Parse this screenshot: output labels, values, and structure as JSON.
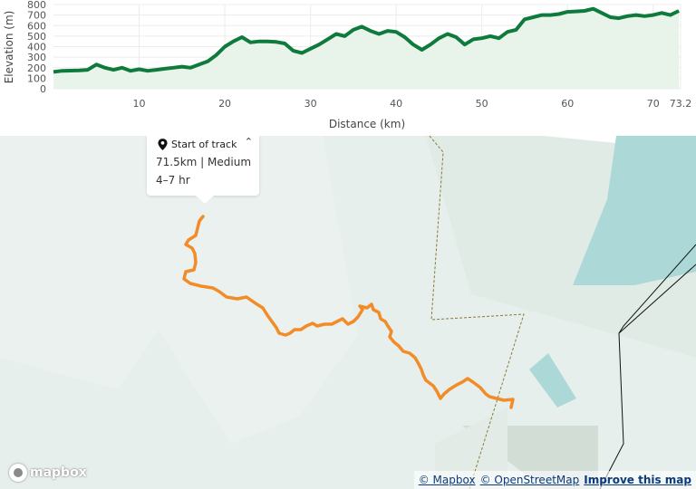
{
  "chart_data": {
    "type": "area",
    "xlabel": "Distance (km)",
    "ylabel": "Elevation (m)",
    "xlim": [
      0,
      73.2
    ],
    "ylim": [
      0,
      800
    ],
    "x_ticks": [
      "10",
      "20",
      "30",
      "40",
      "50",
      "60",
      "70",
      "73.2"
    ],
    "y_ticks": [
      "0",
      "100",
      "200",
      "300",
      "400",
      "500",
      "600",
      "700",
      "800"
    ],
    "grid": true,
    "line_color": "#0e7a3c",
    "fill_color": "#e8f3ea",
    "series": [
      {
        "x": [
          0,
          1,
          3,
          4,
          5,
          6,
          7,
          8,
          9,
          10,
          11,
          12,
          13,
          14,
          15,
          16,
          17,
          18,
          19,
          20,
          21,
          22,
          23,
          24,
          25,
          26,
          27,
          28,
          29,
          30,
          31,
          32,
          33,
          34,
          35,
          36,
          37,
          38,
          39,
          40,
          41,
          42,
          43,
          44,
          45,
          46,
          47,
          48,
          49,
          50,
          51,
          52,
          53,
          54,
          55,
          56,
          57,
          58,
          59,
          60,
          61,
          62,
          63,
          64,
          65,
          66,
          67,
          68,
          69,
          70,
          71,
          72,
          73
        ],
        "values": [
          160,
          170,
          175,
          180,
          230,
          200,
          180,
          200,
          170,
          185,
          170,
          180,
          190,
          200,
          210,
          200,
          230,
          260,
          320,
          400,
          450,
          490,
          440,
          450,
          450,
          445,
          430,
          360,
          340,
          380,
          420,
          470,
          520,
          500,
          560,
          590,
          550,
          520,
          550,
          540,
          490,
          420,
          370,
          420,
          480,
          520,
          490,
          420,
          470,
          480,
          500,
          480,
          540,
          560,
          660,
          680,
          700,
          700,
          710,
          730,
          735,
          740,
          760,
          720,
          680,
          670,
          690,
          700,
          690,
          700,
          720,
          700,
          740
        ]
      }
    ]
  },
  "popup": {
    "title": "Start of track",
    "collapse_icon": "⌃",
    "summary": "71.5km | Medium",
    "duration": "4–7 hr"
  },
  "map": {
    "track_color": "#f28c28",
    "mapbox_logo": "mapbox",
    "attribution": {
      "mapbox": "© Mapbox",
      "osm": "© OpenStreetMap",
      "improve": "Improve this map"
    }
  }
}
